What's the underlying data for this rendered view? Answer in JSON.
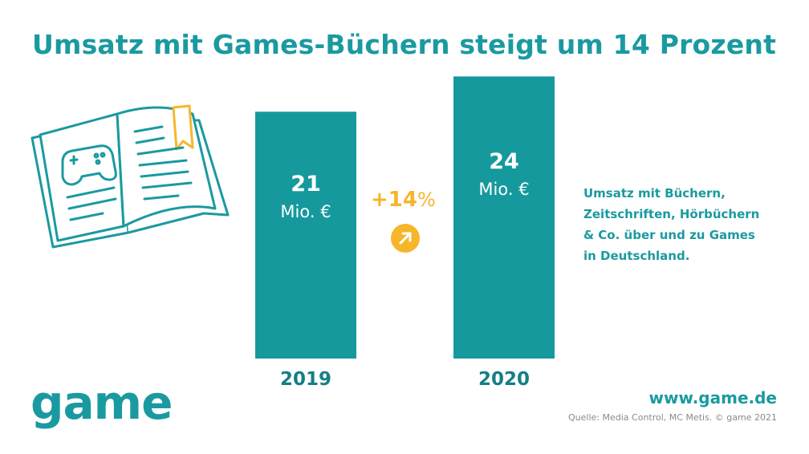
{
  "title": "Umsatz mit Games-Büchern steigt um 14 Prozent",
  "colors": {
    "accent": "#1a9aa0",
    "bar": "#16999d",
    "highlight": "#f6b62c"
  },
  "chart_data": {
    "type": "bar",
    "categories": [
      "2019",
      "2020"
    ],
    "values": [
      21,
      24
    ],
    "value_labels": [
      "21",
      "24"
    ],
    "unit": "Mio. €",
    "title": "Umsatz mit Games-Büchern steigt um 14 Prozent",
    "xlabel": "",
    "ylabel": "",
    "ylim": [
      0,
      26
    ],
    "annotation": {
      "value": "+14",
      "symbol": "%"
    }
  },
  "side_note": {
    "lines": [
      "Umsatz mit Büchern,",
      "Zeitschriften, Hörbüchern",
      "& Co. über und zu Games",
      "in Deutschland."
    ]
  },
  "footer": {
    "logo": "game",
    "url": "www.game.de",
    "source": "Quelle: Media Control, MC Metis. © game 2021"
  },
  "icons": {
    "illustration": "open-book-gamepad-icon",
    "trend": "arrow-up-right-icon"
  }
}
